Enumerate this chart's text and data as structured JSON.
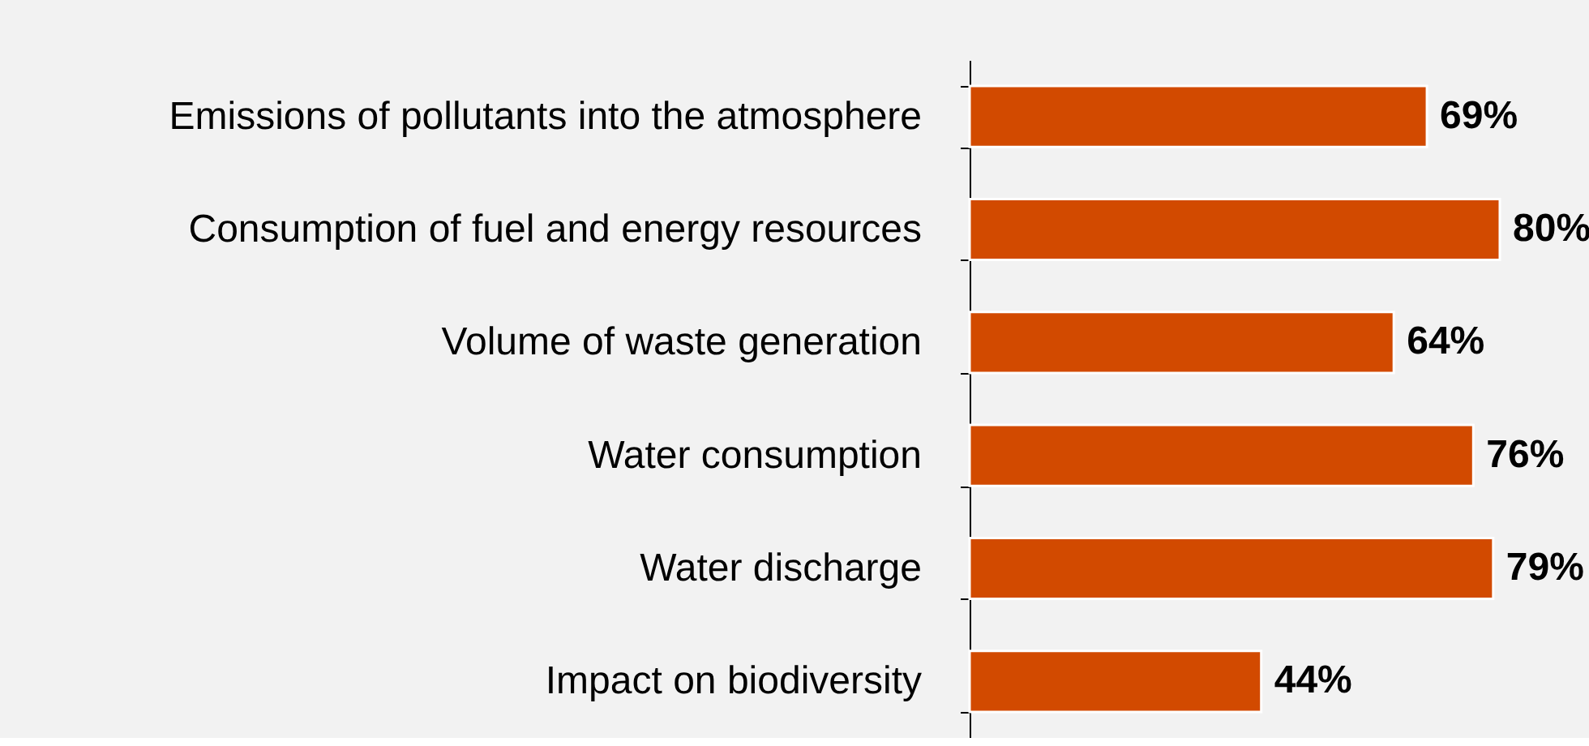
{
  "chart_data": {
    "type": "bar",
    "orientation": "horizontal",
    "categories": [
      "Emissions of pollutants into the atmosphere",
      "Consumption of fuel and energy resources",
      "Volume of waste generation",
      "Water consumption",
      "Water discharge",
      "Impact on biodiversity"
    ],
    "values": [
      69,
      80,
      64,
      76,
      79,
      44
    ],
    "value_labels": [
      "69%",
      "80%",
      "64%",
      "76%",
      "79%",
      "44%"
    ],
    "color": "#d24a00",
    "tick_labels": "y",
    "grid": false
  }
}
